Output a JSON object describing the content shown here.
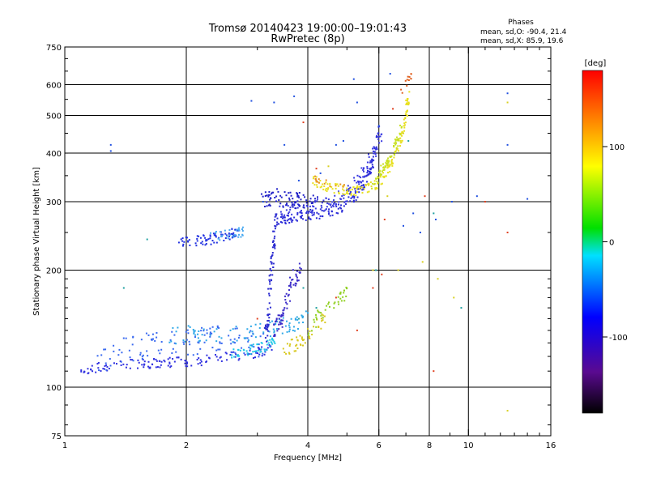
{
  "chart_data": {
    "type": "scatter",
    "title": "Tromsø 20140423 19:00:00–19:01:43",
    "subtitle": "RwPretec (8p)",
    "stats": {
      "header": "Phases",
      "line1": "mean, sd,O: -90.4, 21.4",
      "line2": "mean, sd,X: 85.9, 19.6"
    },
    "xlabel": "Frequency [MHz]",
    "ylabel": "Stationary phase Virtual Height [km]",
    "xscale": "log",
    "yscale": "log",
    "xlim": [
      1,
      16
    ],
    "ylim": [
      75,
      750
    ],
    "xticks": [
      1,
      2,
      4,
      6,
      8,
      10,
      16
    ],
    "yticks": [
      75,
      100,
      200,
      300,
      400,
      500,
      600,
      750
    ],
    "xgrid": [
      2,
      4,
      6,
      8,
      10
    ],
    "ygrid": [
      100,
      200,
      300,
      400,
      500,
      600
    ],
    "colorbar": {
      "label": "[deg]",
      "range": [
        -180,
        180
      ],
      "ticks": [
        100,
        0,
        -100
      ]
    },
    "series": [
      {
        "type": "curve",
        "color": "#3030e0",
        "spread": 0.03,
        "count": 140,
        "x": [
          1.1,
          1.3,
          1.6,
          1.9,
          2.2,
          2.6,
          3.0,
          3.3
        ],
        "y": [
          111,
          114,
          115,
          116,
          117,
          120,
          123,
          126
        ]
      },
      {
        "type": "curve",
        "color": "#3a6af0",
        "spread": 0.08,
        "count": 120,
        "x": [
          1.2,
          1.5,
          1.8,
          2.1,
          2.4,
          2.8,
          3.1
        ],
        "y": [
          118,
          126,
          132,
          130,
          134,
          130,
          128
        ]
      },
      {
        "type": "curve",
        "color": "#2ea8e8",
        "spread": 0.05,
        "count": 90,
        "x": [
          1.8,
          2.1,
          2.4,
          2.8,
          3.2,
          3.6,
          4.0
        ],
        "y": [
          135,
          138,
          136,
          138,
          140,
          145,
          150
        ]
      },
      {
        "type": "curve",
        "color": "#20c8e8",
        "spread": 0.03,
        "count": 50,
        "x": [
          2.6,
          2.8,
          3.0,
          3.2,
          3.3
        ],
        "y": [
          122,
          124,
          126,
          128,
          130
        ]
      },
      {
        "type": "curve",
        "color": "#2a2ad0",
        "spread": 0.04,
        "count": 80,
        "x": [
          3.15,
          3.2,
          3.25,
          3.3,
          3.35
        ],
        "y": [
          135,
          160,
          200,
          240,
          275
        ]
      },
      {
        "type": "curve",
        "color": "#3a2ac8",
        "spread": 0.05,
        "count": 70,
        "x": [
          3.3,
          3.45,
          3.55,
          3.7,
          3.85
        ],
        "y": [
          140,
          150,
          170,
          190,
          200
        ]
      },
      {
        "type": "curve",
        "color": "#d8c820",
        "spread": 0.04,
        "count": 45,
        "x": [
          3.5,
          3.7,
          3.9,
          4.1,
          4.4
        ],
        "y": [
          126,
          128,
          132,
          140,
          150
        ]
      },
      {
        "type": "curve",
        "color": "#90d020",
        "spread": 0.04,
        "count": 40,
        "x": [
          4.0,
          4.2,
          4.5,
          4.8,
          5.0
        ],
        "y": [
          140,
          150,
          160,
          170,
          175
        ]
      },
      {
        "type": "curve",
        "color": "#2030e0",
        "spread": 0.03,
        "count": 70,
        "x": [
          1.9,
          2.1,
          2.3,
          2.5,
          2.7
        ],
        "y": [
          236,
          238,
          240,
          245,
          252
        ]
      },
      {
        "type": "curve",
        "color": "#48a8f0",
        "spread": 0.03,
        "count": 30,
        "x": [
          2.3,
          2.5,
          2.7,
          2.8
        ],
        "y": [
          243,
          246,
          250,
          254
        ]
      },
      {
        "type": "curve",
        "color": "#2a2ad8",
        "spread": 0.03,
        "count": 160,
        "x": [
          3.4,
          3.6,
          4.0,
          4.5,
          5.0,
          5.5,
          5.8,
          6.0
        ],
        "y": [
          270,
          272,
          276,
          282,
          295,
          330,
          380,
          470
        ]
      },
      {
        "type": "curve",
        "color": "#3a3ae0",
        "spread": 0.04,
        "count": 120,
        "x": [
          3.4,
          3.8,
          4.2,
          4.6,
          5.0,
          5.4,
          5.8,
          6.1
        ],
        "y": [
          285,
          290,
          292,
          300,
          315,
          345,
          400,
          450
        ]
      },
      {
        "type": "curve",
        "color": "#2222c8",
        "spread": 0.05,
        "count": 80,
        "x": [
          3.1,
          3.3,
          3.6,
          3.9,
          4.2
        ],
        "y": [
          300,
          310,
          305,
          300,
          295
        ]
      },
      {
        "type": "curve",
        "color": "#e8e020",
        "spread": 0.03,
        "count": 160,
        "x": [
          4.1,
          4.6,
          5.2,
          5.9,
          6.4,
          6.8,
          7.0,
          7.1
        ],
        "y": [
          340,
          325,
          320,
          330,
          370,
          430,
          500,
          560
        ]
      },
      {
        "type": "curve",
        "color": "#c8e020",
        "spread": 0.03,
        "count": 70,
        "x": [
          5.8,
          6.1,
          6.5,
          6.8
        ],
        "y": [
          330,
          360,
          400,
          460
        ]
      },
      {
        "type": "curve",
        "color": "#e89020",
        "spread": 0.02,
        "count": 16,
        "x": [
          4.1,
          4.5,
          5.0
        ],
        "y": [
          345,
          335,
          325
        ]
      },
      {
        "type": "curve",
        "color": "#e06020",
        "spread": 0.03,
        "count": 12,
        "x": [
          6.8,
          7.0,
          7.2
        ],
        "y": [
          570,
          600,
          640
        ]
      },
      {
        "type": "scatter",
        "color": "#2050e0",
        "x": [
          1.3,
          1.3,
          2.9,
          3.5,
          3.7,
          3.8,
          4.3,
          4.7,
          4.9,
          5.3,
          6.0,
          6.9,
          7.3,
          7.6,
          8.3,
          9.1,
          10.5,
          12.5,
          12.5,
          14.0,
          3.3,
          3.1,
          5.2,
          6.4
        ],
        "y": [
          420,
          405,
          545,
          420,
          560,
          340,
          355,
          420,
          430,
          540,
          470,
          260,
          280,
          250,
          270,
          300,
          310,
          570,
          420,
          305,
          540,
          300,
          620,
          640
        ]
      },
      {
        "type": "scatter",
        "color": "#e04020",
        "x": [
          3.9,
          6.2,
          7.8,
          4.7,
          5.8,
          6.1,
          6.5,
          5.3,
          8.2,
          11.0,
          12.5,
          3.0,
          4.2
        ],
        "y": [
          480,
          270,
          310,
          170,
          180,
          195,
          520,
          140,
          110,
          300,
          250,
          150,
          365
        ]
      },
      {
        "type": "scatter",
        "color": "#d8d020",
        "x": [
          6.3,
          6.7,
          7.7,
          8.4,
          12.5,
          5.8,
          6.9,
          9.2,
          12.5,
          4.5
        ],
        "y": [
          310,
          200,
          210,
          190,
          540,
          200,
          450,
          170,
          87,
          370
        ]
      },
      {
        "type": "scatter",
        "color": "#20a0a0",
        "x": [
          7.1,
          5.9,
          9.6,
          8.2,
          3.8,
          3.9,
          4.2,
          1.6,
          1.4
        ],
        "y": [
          430,
          200,
          160,
          280,
          150,
          180,
          160,
          240,
          180
        ]
      }
    ]
  }
}
